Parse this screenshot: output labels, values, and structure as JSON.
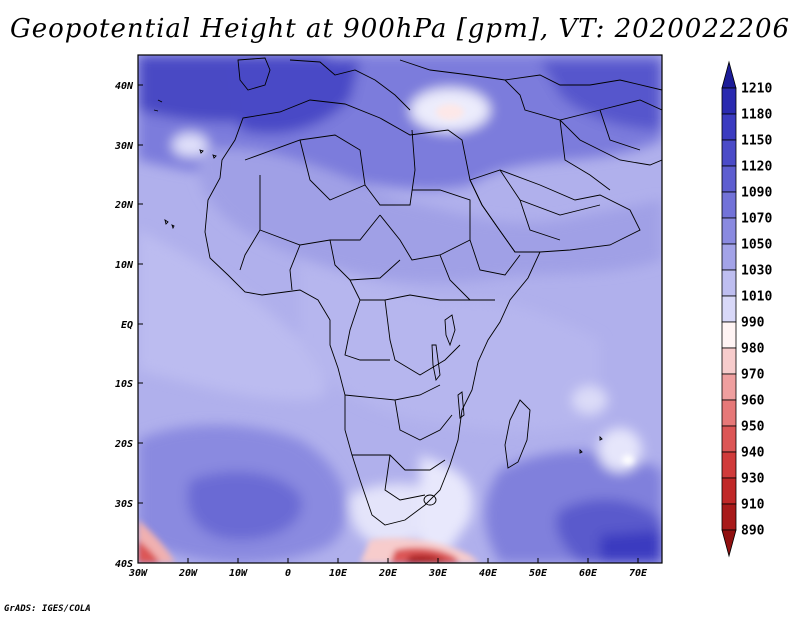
{
  "title": "Geopotential Height at 900hPa [gpm], VT: 2020022206",
  "credit": "GrADS: IGES/COLA",
  "lat_labels": [
    "40N",
    "30N",
    "20N",
    "10N",
    "EQ",
    "10S",
    "20S",
    "30S",
    "40S"
  ],
  "lon_labels": [
    "30W",
    "20W",
    "10W",
    "0",
    "10E",
    "20E",
    "30E",
    "40E",
    "50E",
    "60E",
    "70E"
  ],
  "colorbar": {
    "levels": [
      "1210",
      "1180",
      "1150",
      "1120",
      "1090",
      "1070",
      "1050",
      "1030",
      "1010",
      "990",
      "980",
      "970",
      "960",
      "950",
      "940",
      "930",
      "910",
      "890"
    ],
    "colors": [
      "#1c1c98",
      "#2a2ab0",
      "#3b3bc0",
      "#4b4bc8",
      "#5e5ed0",
      "#7272d8",
      "#8a8ae0",
      "#a3a3e8",
      "#bebef0",
      "#d8d8f8",
      "#fff4f4",
      "#f7cccc",
      "#ef9f9f",
      "#e67878",
      "#dc5656",
      "#d03b3b",
      "#c02828",
      "#a81a1a",
      "#901010"
    ]
  }
}
